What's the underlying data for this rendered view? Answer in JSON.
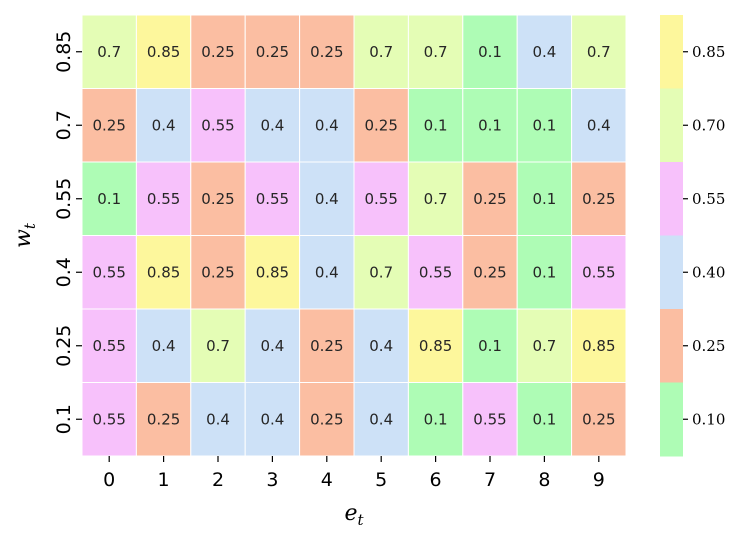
{
  "chart_data": {
    "type": "heatmap",
    "xlabel": "e",
    "xlabel_sub": "t",
    "ylabel": "w",
    "ylabel_sub": "t",
    "x_categories": [
      "0",
      "1",
      "2",
      "3",
      "4",
      "5",
      "6",
      "7",
      "8",
      "9"
    ],
    "y_categories": [
      "0.85",
      "0.7",
      "0.55",
      "0.4",
      "0.25",
      "0.1"
    ],
    "values": [
      [
        0.7,
        0.85,
        0.25,
        0.25,
        0.25,
        0.7,
        0.7,
        0.1,
        0.4,
        0.7
      ],
      [
        0.25,
        0.4,
        0.55,
        0.4,
        0.4,
        0.25,
        0.1,
        0.1,
        0.1,
        0.4
      ],
      [
        0.1,
        0.55,
        0.25,
        0.55,
        0.4,
        0.55,
        0.7,
        0.25,
        0.1,
        0.25
      ],
      [
        0.55,
        0.85,
        0.25,
        0.85,
        0.4,
        0.7,
        0.55,
        0.25,
        0.1,
        0.55
      ],
      [
        0.55,
        0.4,
        0.7,
        0.4,
        0.25,
        0.4,
        0.85,
        0.1,
        0.7,
        0.85
      ],
      [
        0.55,
        0.25,
        0.4,
        0.4,
        0.25,
        0.4,
        0.1,
        0.55,
        0.1,
        0.25
      ]
    ],
    "colorbar": {
      "ticks": [
        "0.85",
        "0.70",
        "0.55",
        "0.40",
        "0.25",
        "0.10"
      ],
      "levels": [
        {
          "value": 0.85,
          "color": "#fdf79c"
        },
        {
          "value": 0.7,
          "color": "#e4fdb5"
        },
        {
          "value": 0.55,
          "color": "#f7c1fb"
        },
        {
          "value": 0.4,
          "color": "#cde1f7"
        },
        {
          "value": 0.25,
          "color": "#fbbea2"
        },
        {
          "value": 0.1,
          "color": "#aefcb5"
        }
      ]
    }
  }
}
